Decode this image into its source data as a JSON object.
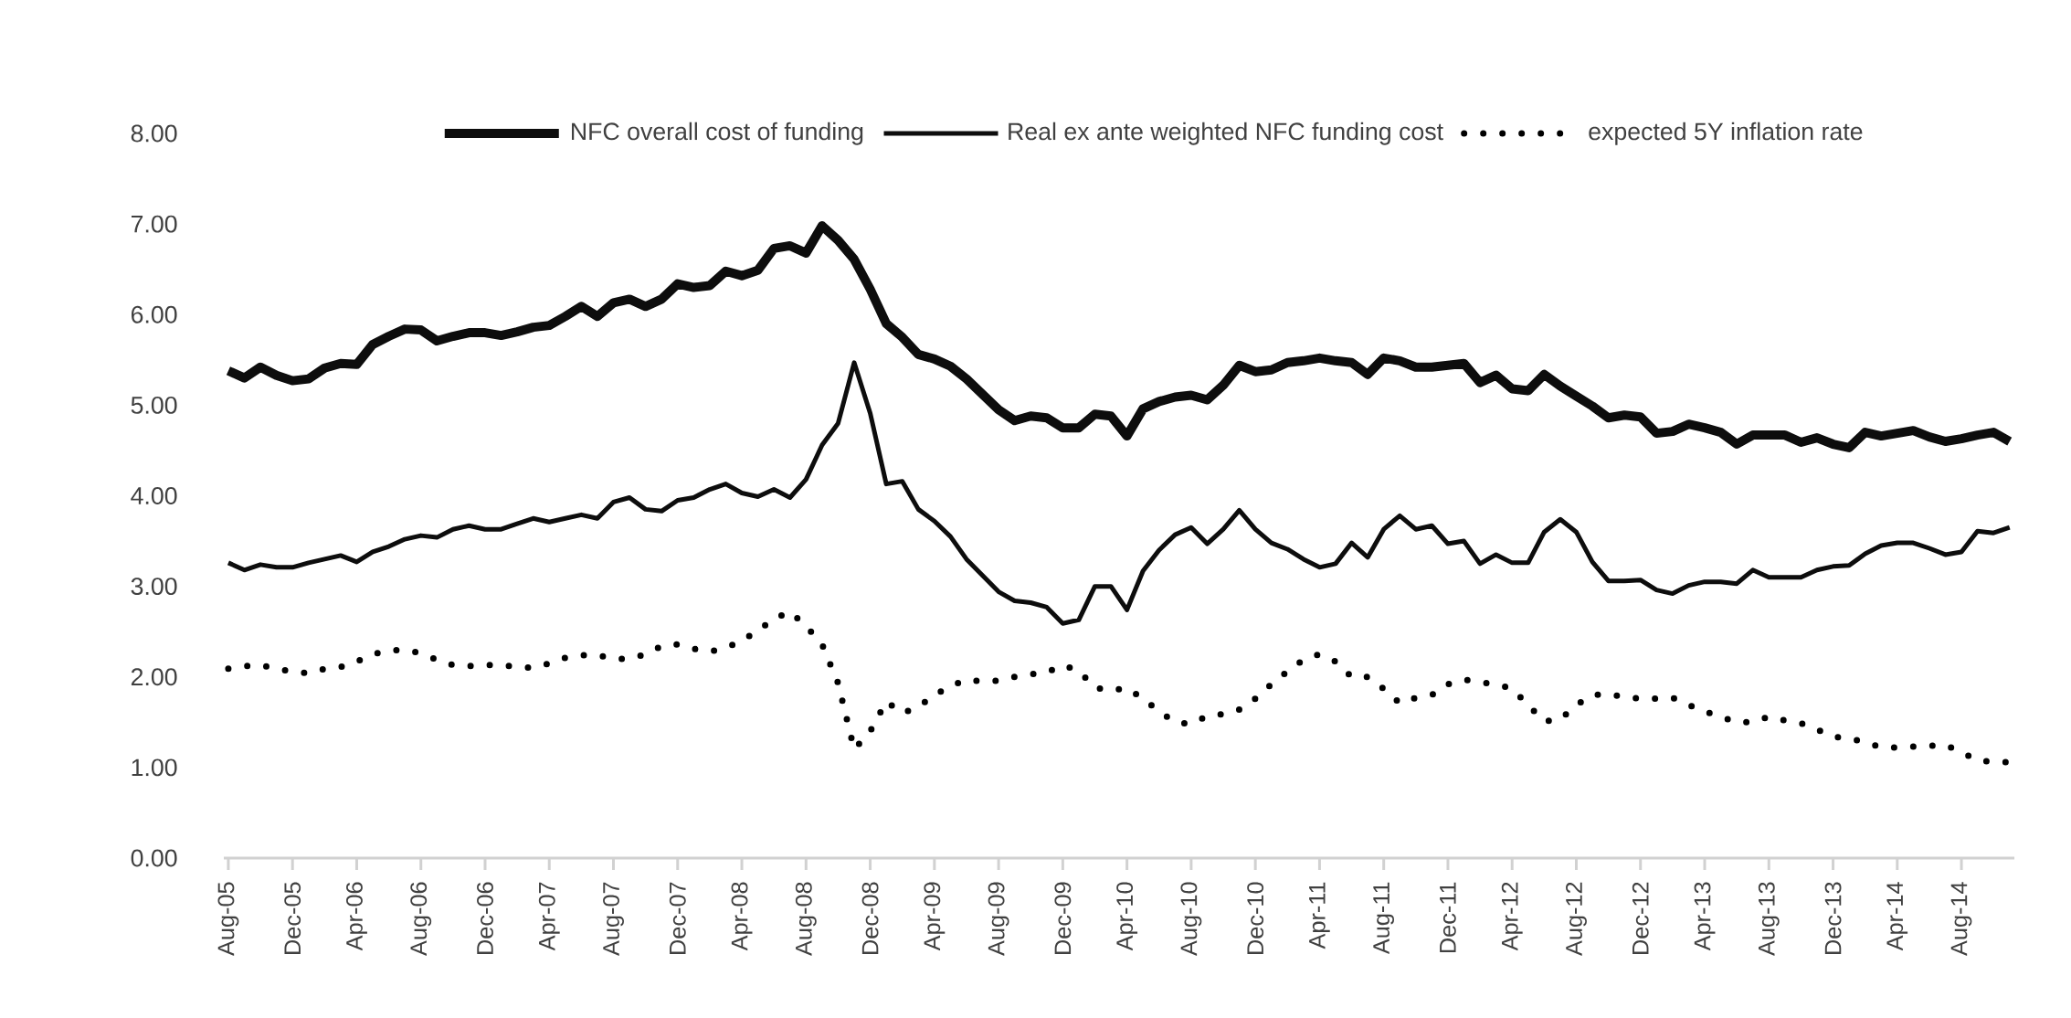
{
  "chart_data": {
    "type": "line",
    "categories": [
      "Aug-05",
      null,
      null,
      null,
      "Dec-05",
      null,
      null,
      null,
      "Apr-06",
      null,
      null,
      null,
      "Aug-06",
      null,
      null,
      null,
      "Dec-06",
      null,
      null,
      null,
      "Apr-07",
      null,
      null,
      null,
      "Aug-07",
      null,
      null,
      null,
      "Dec-07",
      null,
      null,
      null,
      "Apr-08",
      null,
      null,
      null,
      "Aug-08",
      null,
      null,
      null,
      "Dec-08",
      null,
      null,
      null,
      "Apr-09",
      null,
      null,
      null,
      "Aug-09",
      null,
      null,
      null,
      "Dec-09",
      null,
      null,
      null,
      "Apr-10",
      null,
      null,
      null,
      "Aug-10",
      null,
      null,
      null,
      "Dec-10",
      null,
      null,
      null,
      "Apr-11",
      null,
      null,
      null,
      "Aug-11",
      null,
      null,
      null,
      "Dec-11",
      null,
      null,
      null,
      "Apr-12",
      null,
      null,
      null,
      "Aug-12",
      null,
      null,
      null,
      "Dec-12",
      null,
      null,
      null,
      "Apr-13",
      null,
      null,
      null,
      "Aug-13",
      null,
      null,
      null,
      "Dec-13",
      null,
      null,
      null,
      "Apr-14",
      null,
      null,
      null,
      "Aug-14",
      null,
      null,
      null
    ],
    "series": [
      {
        "name": "NFC overall cost of funding",
        "color": "#0d0d0d",
        "line_style": "solid",
        "values": [
          5.38,
          5.3,
          5.42,
          5.33,
          5.27,
          5.29,
          5.41,
          5.46,
          5.45,
          5.67,
          5.76,
          5.84,
          5.83,
          5.71,
          5.76,
          5.8,
          5.8,
          5.77,
          5.81,
          5.86,
          5.88,
          5.98,
          6.09,
          5.98,
          6.13,
          6.17,
          6.09,
          6.17,
          6.34,
          6.3,
          6.32,
          6.48,
          6.43,
          6.49,
          6.73,
          6.76,
          6.68,
          6.98,
          6.82,
          6.61,
          6.28,
          5.9,
          5.75,
          5.56,
          5.51,
          5.43,
          5.29,
          5.12,
          4.95,
          4.83,
          4.88,
          4.86,
          4.75,
          4.75,
          4.9,
          4.88,
          4.66,
          4.96,
          5.04,
          5.09,
          5.11,
          5.06,
          5.22,
          5.44,
          5.37,
          5.39,
          5.47,
          5.49,
          5.52,
          5.49,
          5.47,
          5.34,
          5.52,
          5.49,
          5.42,
          5.42,
          5.44,
          5.46,
          5.25,
          5.33,
          5.18,
          5.16,
          5.34,
          5.21,
          5.1,
          4.99,
          4.86,
          4.89,
          4.87,
          4.69,
          4.71,
          4.79,
          4.75,
          4.7,
          4.57,
          4.67,
          4.67,
          4.67,
          4.59,
          4.64,
          4.57,
          4.53,
          4.7,
          4.66,
          4.69,
          4.72,
          4.65,
          4.6,
          4.63,
          4.67,
          4.7,
          4.6
        ]
      },
      {
        "name": "Real ex ante weighted NFC funding cost",
        "color": "#0d0d0d",
        "line_style": "solid",
        "values": [
          3.26,
          3.18,
          3.24,
          3.21,
          3.21,
          3.26,
          3.3,
          3.34,
          3.27,
          3.38,
          3.44,
          3.52,
          3.56,
          3.54,
          3.63,
          3.67,
          3.63,
          3.63,
          3.69,
          3.75,
          3.71,
          3.75,
          3.79,
          3.75,
          3.93,
          3.98,
          3.85,
          3.83,
          3.95,
          3.98,
          4.07,
          4.13,
          4.03,
          3.99,
          4.07,
          3.98,
          4.18,
          4.56,
          4.8,
          5.47,
          4.91,
          4.13,
          4.16,
          3.85,
          3.72,
          3.55,
          3.3,
          3.12,
          2.94,
          2.84,
          2.82,
          2.77,
          2.59,
          2.63,
          3.0,
          3.0,
          2.74,
          3.17,
          3.4,
          3.57,
          3.65,
          3.47,
          3.63,
          3.84,
          3.63,
          3.48,
          3.41,
          3.3,
          3.21,
          3.25,
          3.48,
          3.32,
          3.63,
          3.78,
          3.63,
          3.67,
          3.47,
          3.5,
          3.25,
          3.35,
          3.26,
          3.26,
          3.6,
          3.74,
          3.6,
          3.27,
          3.06,
          3.06,
          3.07,
          2.96,
          2.92,
          3.01,
          3.05,
          3.05,
          3.03,
          3.18,
          3.1,
          3.1,
          3.1,
          3.18,
          3.22,
          3.23,
          3.36,
          3.45,
          3.48,
          3.48,
          3.42,
          3.35,
          3.38,
          3.61,
          3.59,
          3.65
        ]
      },
      {
        "name": "expected 5Y inflation rate",
        "color": "#000000",
        "line_style": "dotted",
        "values": [
          2.09,
          2.12,
          2.13,
          2.09,
          2.06,
          2.04,
          2.09,
          2.11,
          2.17,
          2.25,
          2.29,
          2.3,
          2.26,
          2.19,
          2.13,
          2.12,
          2.13,
          2.13,
          2.11,
          2.1,
          2.15,
          2.21,
          2.24,
          2.24,
          2.2,
          2.2,
          2.25,
          2.34,
          2.36,
          2.31,
          2.28,
          2.32,
          2.4,
          2.51,
          2.64,
          2.72,
          2.56,
          2.36,
          1.93,
          1.2,
          1.4,
          1.73,
          1.6,
          1.67,
          1.8,
          1.9,
          1.97,
          1.95,
          1.96,
          2.0,
          2.03,
          2.05,
          2.13,
          2.07,
          1.88,
          1.85,
          1.88,
          1.76,
          1.62,
          1.5,
          1.48,
          1.57,
          1.59,
          1.64,
          1.76,
          1.92,
          2.06,
          2.19,
          2.25,
          2.17,
          2.0,
          2.0,
          1.87,
          1.71,
          1.77,
          1.8,
          1.92,
          1.97,
          1.94,
          1.92,
          1.87,
          1.69,
          1.51,
          1.53,
          1.69,
          1.8,
          1.81,
          1.78,
          1.76,
          1.76,
          1.77,
          1.69,
          1.62,
          1.56,
          1.5,
          1.5,
          1.56,
          1.52,
          1.49,
          1.42,
          1.34,
          1.32,
          1.28,
          1.22,
          1.22,
          1.23,
          1.24,
          1.25,
          1.17,
          1.08,
          1.06,
          1.06
        ]
      }
    ],
    "ylim": [
      0,
      8
    ],
    "yticks": [
      {
        "value": 0,
        "label": "0.00"
      },
      {
        "value": 1,
        "label": "1.00"
      },
      {
        "value": 2,
        "label": "2.00"
      },
      {
        "value": 3,
        "label": "3.00"
      },
      {
        "value": 4,
        "label": "4.00"
      },
      {
        "value": 5,
        "label": "5.00"
      },
      {
        "value": 6,
        "label": "6.00"
      },
      {
        "value": 7,
        "label": "7.00"
      },
      {
        "value": 8,
        "label": "8.00"
      }
    ],
    "grid": false,
    "legend": "top"
  }
}
